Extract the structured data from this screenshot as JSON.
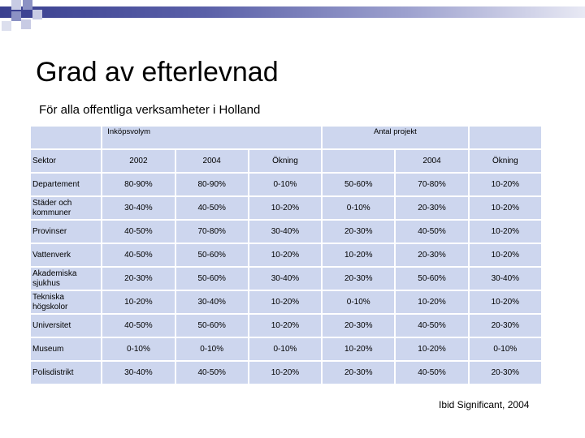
{
  "slide": {
    "title": "Grad av efterlevnad",
    "subtitle": "För alla offentliga verksamheter i Holland",
    "source": "Ibid Significant, 2004"
  },
  "table": {
    "group_headers": {
      "purchase_volume": "Inköpsvolym",
      "project_count": "Antal projekt"
    },
    "column_headers": [
      "Sektor",
      "2002",
      "2004",
      "Ökning",
      "",
      "2004",
      "Ökning"
    ],
    "rows": [
      {
        "sector": "Departement",
        "v2002": "80-90%",
        "v2004": "80-90%",
        "increase": "0-10%",
        "p2002": "50-60%",
        "p2004": "70-80%",
        "pincrease": "10-20%"
      },
      {
        "sector": "Städer och kommuner",
        "v2002": "30-40%",
        "v2004": "40-50%",
        "increase": "10-20%",
        "p2002": "0-10%",
        "p2004": "20-30%",
        "pincrease": "10-20%"
      },
      {
        "sector": "Provinser",
        "v2002": "40-50%",
        "v2004": "70-80%",
        "increase": "30-40%",
        "p2002": "20-30%",
        "p2004": "40-50%",
        "pincrease": "10-20%"
      },
      {
        "sector": "Vattenverk",
        "v2002": "40-50%",
        "v2004": "50-60%",
        "increase": "10-20%",
        "p2002": "10-20%",
        "p2004": "20-30%",
        "pincrease": "10-20%"
      },
      {
        "sector": "Akademiska sjukhus",
        "v2002": "20-30%",
        "v2004": "50-60%",
        "increase": "30-40%",
        "p2002": "20-30%",
        "p2004": "50-60%",
        "pincrease": "30-40%"
      },
      {
        "sector": "Tekniska högskolor",
        "v2002": "10-20%",
        "v2004": "30-40%",
        "increase": "10-20%",
        "p2002": "0-10%",
        "p2004": "10-20%",
        "pincrease": "10-20%"
      },
      {
        "sector": "Universitet",
        "v2002": "40-50%",
        "v2004": "50-60%",
        "increase": "10-20%",
        "p2002": "20-30%",
        "p2004": "40-50%",
        "pincrease": "20-30%"
      },
      {
        "sector": "Museum",
        "v2002": "0-10%",
        "v2004": "0-10%",
        "increase": "0-10%",
        "p2002": "10-20%",
        "p2004": "10-20%",
        "pincrease": "0-10%"
      },
      {
        "sector": "Polisdistrikt",
        "v2002": "30-40%",
        "v2004": "40-50%",
        "increase": "10-20%",
        "p2002": "20-30%",
        "p2004": "40-50%",
        "pincrease": "20-30%"
      }
    ]
  },
  "colors": {
    "cell_bg": "#cdd6ee",
    "bar_dark": "#3a4090",
    "square_a": "#8c92c4",
    "square_b": "#c8cbe4"
  }
}
